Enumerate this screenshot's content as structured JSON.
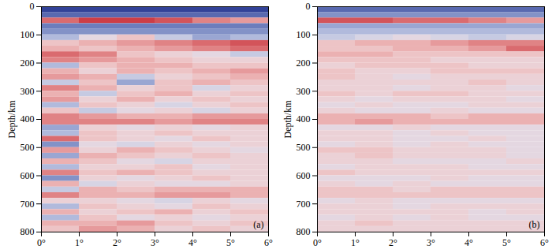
{
  "chart_data": [
    {
      "type": "heatmap",
      "panel_label": "(a)",
      "ylabel": "Depth/km",
      "xlim": [
        0,
        6
      ],
      "ylim": [
        0,
        800
      ],
      "xticks": [
        {
          "value": 0,
          "label": "0°"
        },
        {
          "value": 1,
          "label": "1°"
        },
        {
          "value": 2,
          "label": "2°"
        },
        {
          "value": 3,
          "label": "3°"
        },
        {
          "value": 4,
          "label": "4°"
        },
        {
          "value": 5,
          "label": "5°"
        },
        {
          "value": 6,
          "label": "6°"
        }
      ],
      "yticks": [
        0,
        100,
        200,
        300,
        400,
        500,
        600,
        700,
        800
      ],
      "zlim": [
        -1,
        1
      ],
      "x_edges": [
        0,
        1,
        2,
        3,
        4,
        5,
        6
      ],
      "depth_edges": [
        0,
        20,
        40,
        60,
        80,
        100,
        120,
        140,
        160,
        180,
        200,
        220,
        240,
        260,
        280,
        300,
        320,
        340,
        360,
        380,
        400,
        420,
        440,
        460,
        480,
        500,
        520,
        540,
        560,
        580,
        600,
        620,
        640,
        660,
        680,
        700,
        720,
        740,
        760,
        780,
        800
      ],
      "cells": [
        [
          -0.9,
          -0.9,
          -0.9,
          -0.9,
          -0.9,
          -0.9
        ],
        [
          -0.7,
          -0.7,
          -0.7,
          -0.7,
          -0.7,
          -0.7
        ],
        [
          0.6,
          0.8,
          0.8,
          0.7,
          0.5,
          0.4
        ],
        [
          -0.6,
          -0.6,
          -0.6,
          -0.6,
          -0.6,
          -0.6
        ],
        [
          -0.5,
          -0.5,
          -0.5,
          -0.5,
          -0.5,
          -0.5
        ],
        [
          -0.3,
          0,
          0.2,
          -0.2,
          -0.4,
          -0.3
        ],
        [
          0.2,
          0.3,
          0.4,
          0.5,
          0.6,
          0.7
        ],
        [
          0.3,
          0.2,
          0.3,
          0.4,
          0.5,
          0.6
        ],
        [
          0.6,
          0.5,
          0.2,
          0.1,
          0,
          -0.2
        ],
        [
          0.5,
          0.4,
          0.3,
          0.2,
          0.1,
          0.1
        ],
        [
          -0.3,
          0.2,
          0.3,
          0.3,
          0.2,
          0.2
        ],
        [
          0.3,
          0.1,
          0.3,
          0.2,
          0.3,
          0.4
        ],
        [
          0.4,
          0.3,
          -0.2,
          0.1,
          0.2,
          0.3
        ],
        [
          -0.2,
          0.2,
          -0.4,
          0.2,
          0.3,
          0.2
        ],
        [
          0.5,
          0.3,
          0.1,
          0.2,
          -0.1,
          0.1
        ],
        [
          0.3,
          -0.2,
          0.2,
          0.3,
          0.1,
          0.2
        ],
        [
          0.4,
          0.1,
          0.3,
          0.1,
          0.2,
          0.1
        ],
        [
          -0.3,
          0.2,
          0.1,
          -0.1,
          0.1,
          0.2
        ],
        [
          0.2,
          -0.2,
          0,
          0.1,
          -0.1,
          0.1
        ],
        [
          0.5,
          0.4,
          0.3,
          0.3,
          0.4,
          0.4
        ],
        [
          0.5,
          0.5,
          0.5,
          0.4,
          0.5,
          0.5
        ],
        [
          -0.4,
          0.1,
          0,
          0.1,
          0,
          0.1
        ],
        [
          -0.3,
          0.2,
          0.1,
          0.2,
          0.1,
          0.1
        ],
        [
          0.6,
          0.2,
          0.1,
          0,
          0.2,
          0.1
        ],
        [
          -0.5,
          0,
          -0.1,
          0.1,
          0,
          0.1
        ],
        [
          0.4,
          0.1,
          0.3,
          0.2,
          0.1,
          0
        ],
        [
          -0.4,
          0.3,
          0.2,
          0.1,
          0.2,
          0.1
        ],
        [
          0.3,
          0.2,
          0,
          -0.1,
          0.1,
          0.1
        ],
        [
          -0.3,
          0.1,
          0.1,
          0.2,
          0,
          0.1
        ],
        [
          0.5,
          0.2,
          0.3,
          0.2,
          0.1,
          0.1
        ],
        [
          -0.5,
          0.1,
          0,
          0.1,
          0.2,
          0.1
        ],
        [
          0.3,
          -0.1,
          0.1,
          0,
          0,
          0.1
        ],
        [
          -0.2,
          0.3,
          0.2,
          0.3,
          0.3,
          0.3
        ],
        [
          0.5,
          0.3,
          0.3,
          0.4,
          0.4,
          0.3
        ],
        [
          0.1,
          0.1,
          0,
          -0.1,
          0.1,
          0
        ],
        [
          -0.3,
          0.2,
          0.1,
          0,
          0.2,
          0.1
        ],
        [
          0.3,
          0.1,
          0.2,
          0.3,
          0.1,
          0.2
        ],
        [
          -0.3,
          0.2,
          0,
          0.1,
          0,
          0.1
        ],
        [
          0.3,
          0.3,
          0.4,
          0.2,
          0.1,
          0.2
        ],
        [
          0.2,
          0.4,
          0.3,
          0.1,
          0.2,
          0.1
        ]
      ]
    },
    {
      "type": "heatmap",
      "panel_label": "(b)",
      "ylabel": "Depth/km",
      "xlim": [
        0,
        6
      ],
      "ylim": [
        0,
        800
      ],
      "xticks": [
        {
          "value": 0,
          "label": "0°"
        },
        {
          "value": 1,
          "label": "1°"
        },
        {
          "value": 2,
          "label": "2°"
        },
        {
          "value": 3,
          "label": "3°"
        },
        {
          "value": 4,
          "label": "4°"
        },
        {
          "value": 5,
          "label": "5°"
        },
        {
          "value": 6,
          "label": "6°"
        }
      ],
      "yticks": [
        0,
        100,
        200,
        300,
        400,
        500,
        600,
        700,
        800
      ],
      "zlim": [
        -1,
        1
      ],
      "x_edges": [
        0,
        1,
        2,
        3,
        4,
        5,
        6
      ],
      "depth_edges": [
        0,
        20,
        40,
        60,
        80,
        100,
        120,
        140,
        160,
        180,
        200,
        220,
        240,
        260,
        280,
        300,
        320,
        340,
        360,
        380,
        400,
        420,
        440,
        460,
        480,
        500,
        520,
        540,
        560,
        580,
        600,
        620,
        640,
        660,
        680,
        700,
        720,
        740,
        760,
        780,
        800
      ],
      "cells": [
        [
          -0.7,
          -0.7,
          -0.7,
          -0.7,
          -0.7,
          -0.7
        ],
        [
          -0.5,
          -0.5,
          -0.5,
          -0.5,
          -0.5,
          -0.5
        ],
        [
          0.7,
          0.7,
          0.6,
          0.6,
          0.5,
          0.4
        ],
        [
          -0.4,
          -0.4,
          -0.4,
          -0.4,
          -0.4,
          -0.4
        ],
        [
          -0.3,
          -0.3,
          -0.3,
          -0.3,
          -0.3,
          -0.3
        ],
        [
          -0.2,
          -0.1,
          0,
          -0.1,
          -0.2,
          -0.1
        ],
        [
          0.2,
          0.3,
          0.3,
          0.4,
          0.5,
          0.5
        ],
        [
          0.2,
          0.2,
          0.3,
          0.3,
          0.4,
          0.6
        ],
        [
          0.3,
          0.3,
          0.2,
          0.2,
          0.2,
          0.2
        ],
        [
          0.2,
          0.2,
          0.2,
          0.1,
          0.1,
          0.1
        ],
        [
          0.1,
          0.2,
          0.2,
          0.2,
          0.1,
          0.1
        ],
        [
          0.2,
          0.1,
          0.1,
          0.2,
          0.2,
          0.2
        ],
        [
          0.2,
          0.1,
          0,
          0.1,
          0.1,
          0.1
        ],
        [
          0.1,
          0.1,
          0.1,
          0.1,
          0.2,
          0.1
        ],
        [
          0.1,
          0.1,
          0,
          0.1,
          0.1,
          0
        ],
        [
          0.2,
          0.1,
          0.2,
          0.2,
          0.1,
          0.1
        ],
        [
          0.1,
          0,
          0.1,
          0.1,
          0.1,
          0
        ],
        [
          0,
          0.1,
          0,
          0,
          0.1,
          0.1
        ],
        [
          0.1,
          0,
          0,
          0.1,
          0,
          0
        ],
        [
          0.3,
          0.3,
          0.3,
          0.2,
          0.3,
          0.3
        ],
        [
          0.3,
          0.4,
          0.3,
          0.3,
          0.3,
          0.3
        ],
        [
          0,
          0,
          0.1,
          0,
          0,
          0
        ],
        [
          0.1,
          0.1,
          0,
          0.1,
          0,
          0
        ],
        [
          0.1,
          0.1,
          0,
          0,
          0.1,
          0
        ],
        [
          0,
          0.1,
          0,
          0.1,
          0,
          0
        ],
        [
          0.2,
          0.2,
          0.1,
          0.1,
          0.1,
          0
        ],
        [
          0.1,
          0.2,
          0.1,
          0.1,
          0.1,
          0
        ],
        [
          0.1,
          0.1,
          0,
          0,
          0,
          0.1
        ],
        [
          0,
          0.1,
          0.1,
          0.1,
          0,
          0
        ],
        [
          0.2,
          0.1,
          0.1,
          0.1,
          0.1,
          0.1
        ],
        [
          0,
          0,
          0,
          0.1,
          0,
          0
        ],
        [
          0.1,
          0,
          0.1,
          0,
          0,
          0
        ],
        [
          0.2,
          0.2,
          0.1,
          0.2,
          0.2,
          0.2
        ],
        [
          0.2,
          0.2,
          0.2,
          0.2,
          0.2,
          0.2
        ],
        [
          0,
          0.1,
          0,
          0,
          0,
          0
        ],
        [
          0.1,
          0.1,
          0,
          0.1,
          0.1,
          0.1
        ],
        [
          0.1,
          0.1,
          0.1,
          0.1,
          0,
          0.1
        ],
        [
          0,
          0.1,
          0,
          0.1,
          0,
          0
        ],
        [
          0.1,
          0.2,
          0.1,
          0.1,
          0.1,
          0.1
        ],
        [
          0.1,
          0.1,
          0.1,
          0.1,
          0.1,
          0.1
        ]
      ]
    }
  ]
}
